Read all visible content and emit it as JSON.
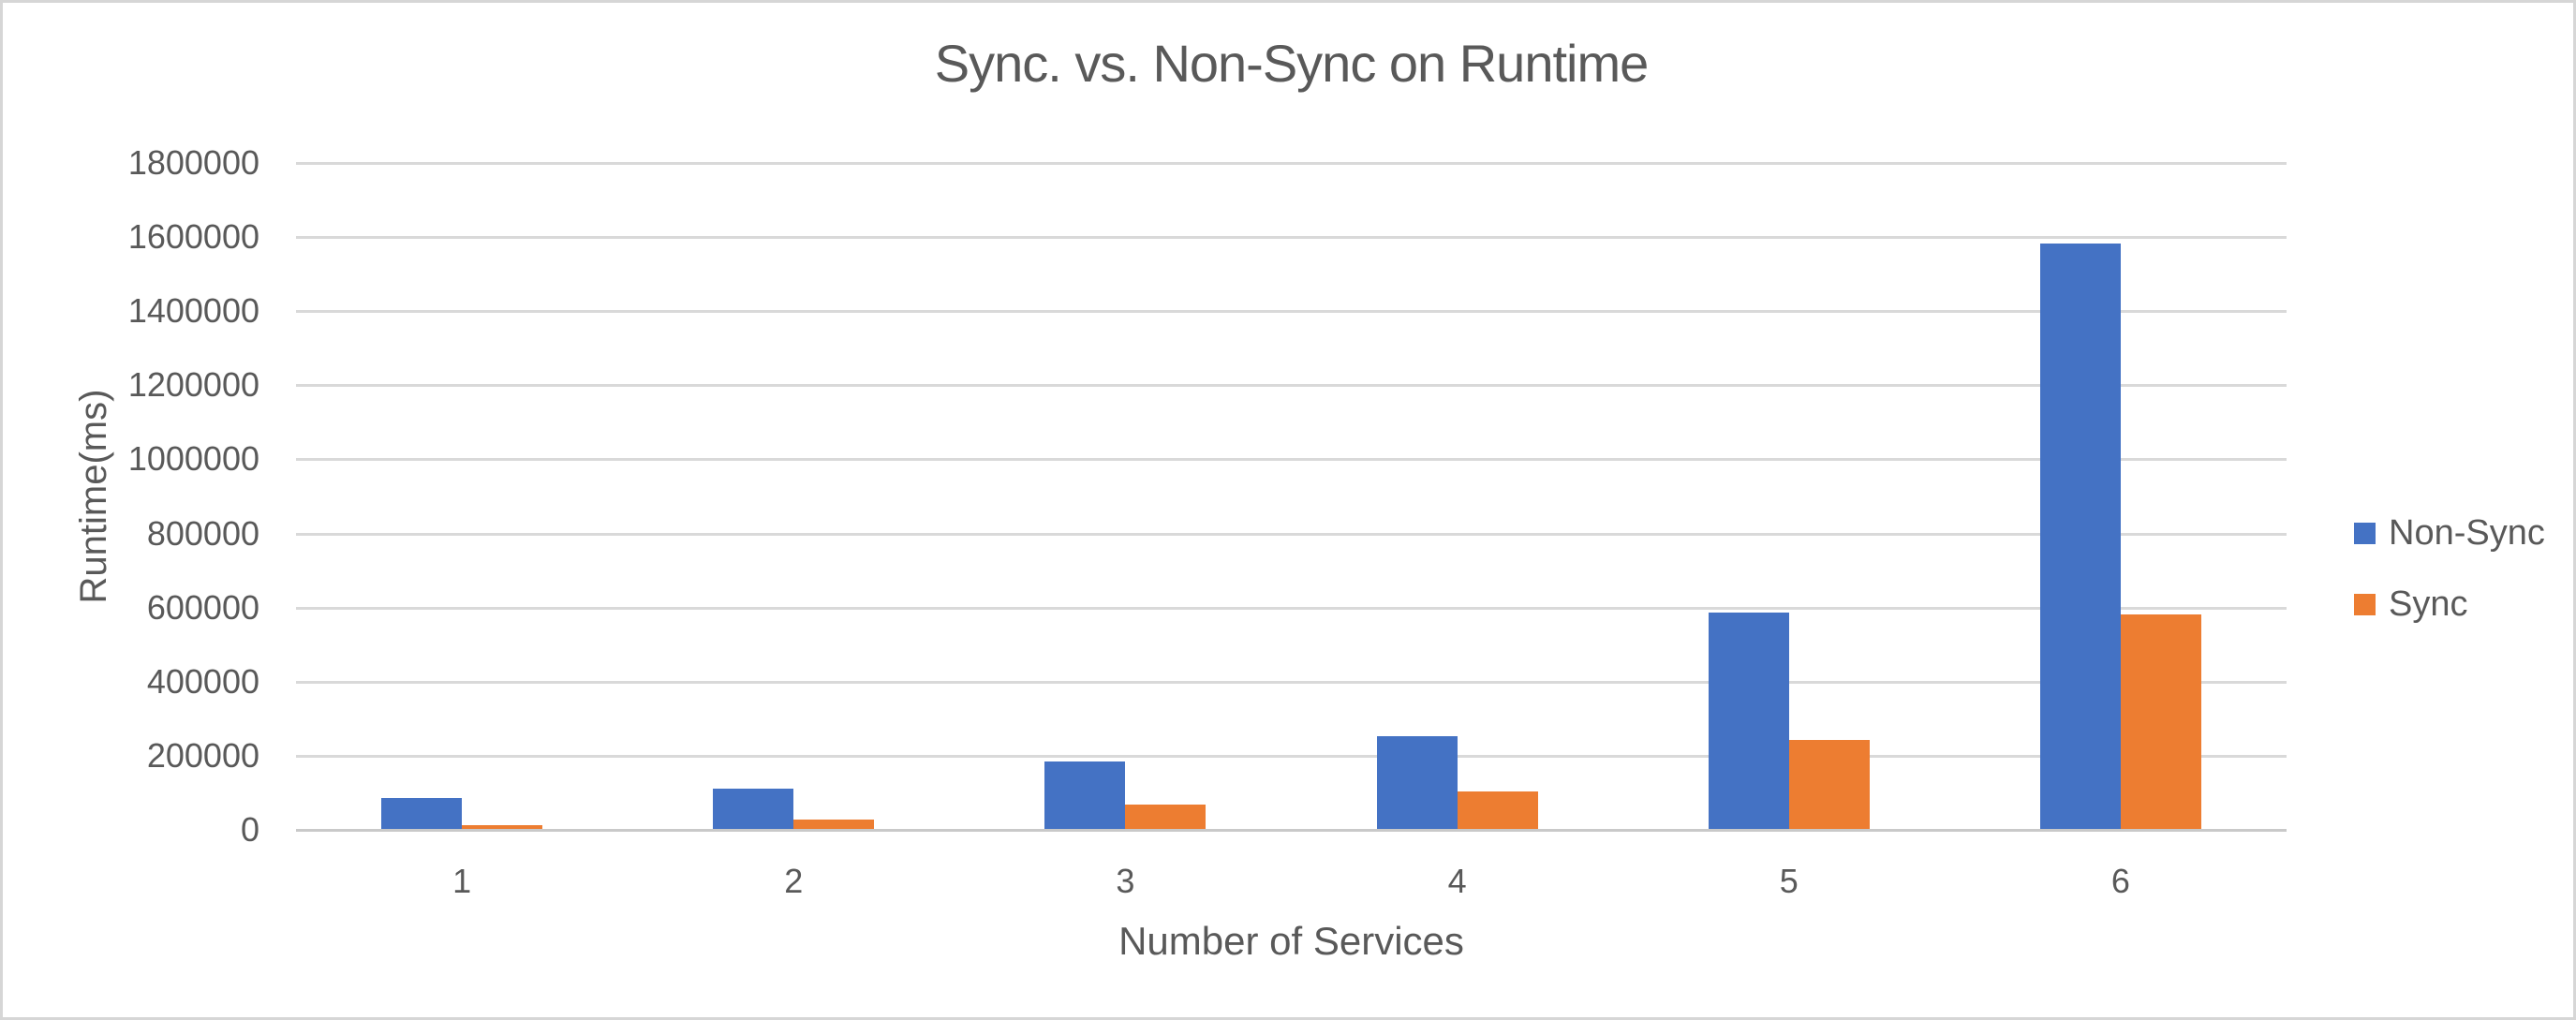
{
  "title": "Sync. vs. Non-Sync on Runtime",
  "chart_data": {
    "type": "bar",
    "title": "Sync. vs. Non-Sync on Runtime",
    "xlabel": "Number of Services",
    "ylabel": "Runtime(ms)",
    "categories": [
      "1",
      "2",
      "3",
      "4",
      "5",
      "6"
    ],
    "series": [
      {
        "name": "Non-Sync",
        "color": "#4472C4",
        "values": [
          86000,
          112000,
          185000,
          253000,
          587000,
          1583000
        ]
      },
      {
        "name": "Sync",
        "color": "#ED7D31",
        "values": [
          12000,
          27000,
          68000,
          104000,
          243000,
          582000
        ]
      }
    ],
    "ylim": [
      0,
      1800000
    ],
    "y_ticks": [
      0,
      200000,
      400000,
      600000,
      800000,
      1000000,
      1200000,
      1400000,
      1600000,
      1800000
    ],
    "grid": true,
    "legend_position": "right"
  },
  "colors": {
    "text": "#595959",
    "gridline": "#D9D9D9",
    "axis_line": "#C9C9C9",
    "border": "#D6D6D6",
    "background": "#FFFFFF",
    "non_sync": "#4472C4",
    "sync": "#ED7D31"
  }
}
